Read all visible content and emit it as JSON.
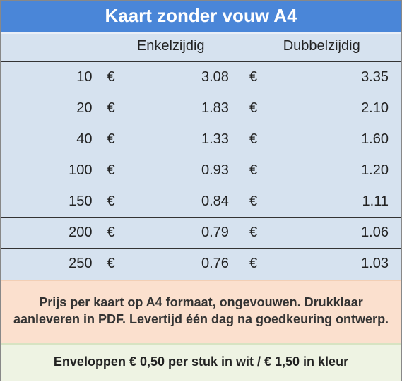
{
  "title": "Kaart zonder vouw A4",
  "columns": {
    "col1": "Enkelzijdig",
    "col2": "Dubbelzijdig"
  },
  "currency": "€",
  "rows": [
    {
      "qty": "10",
      "p1": "3.08",
      "p2": "3.35"
    },
    {
      "qty": "20",
      "p1": "1.83",
      "p2": "2.10"
    },
    {
      "qty": "40",
      "p1": "1.33",
      "p2": "1.60"
    },
    {
      "qty": "100",
      "p1": "0.93",
      "p2": "1.20"
    },
    {
      "qty": "150",
      "p1": "0.84",
      "p2": "1.11"
    },
    {
      "qty": "200",
      "p1": "0.79",
      "p2": "1.06"
    },
    {
      "qty": "250",
      "p1": "0.76",
      "p2": "1.03"
    }
  ],
  "note1": "Prijs per kaart op A4 formaat, ongevouwen. Drukklaar aanleveren in PDF. Levertijd één dag na goedkeuring ontwerp.",
  "note2": "Enveloppen € 0,50 per stuk in wit / € 1,50 in kleur",
  "colors": {
    "title_bg": "#4a86d8",
    "title_text": "#ffffff",
    "band_bg": "#d6e2ef",
    "note1_bg": "#fbe0ce",
    "note2_bg": "#eef3e3",
    "band_border": "#eaeff7",
    "note1_border": "#f2cfb5",
    "note2_border": "#d7e3c2"
  },
  "fonts": {
    "title_size": "26px"
  }
}
